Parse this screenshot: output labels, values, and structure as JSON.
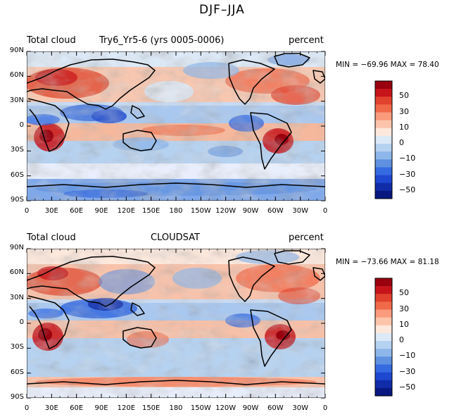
{
  "title": "DJF–JJA",
  "panels": [
    {
      "left_label": "Total cloud",
      "center_label": "Try6_Yr5-6 (yrs 0005-0006)",
      "right_label": "percent",
      "stats": "MIN = −69.96 MAX =  78.40"
    },
    {
      "left_label": "Total cloud",
      "center_label": "CLOUDSAT",
      "right_label": "percent",
      "stats": "MIN = −73.66 MAX =  81.18"
    }
  ],
  "lat_ticks": [
    "90N",
    "60N",
    "30N",
    "0",
    "30S",
    "60S",
    "90S"
  ],
  "lon_ticks": [
    "0",
    "30E",
    "60E",
    "90E",
    "120E",
    "150E",
    "180",
    "150W",
    "120W",
    "90W",
    "60W",
    "30W",
    "0"
  ],
  "colorbar": {
    "levels": [
      60,
      50,
      40,
      30,
      20,
      10,
      5,
      0,
      -5,
      -10,
      -20,
      -30,
      -40,
      -50,
      -60
    ],
    "labels": [
      "50",
      "30",
      "10",
      "0",
      "−10",
      "−30",
      "−50"
    ],
    "colors": [
      "#99000d",
      "#c6141a",
      "#e0422d",
      "#f06a4a",
      "#f99b7c",
      "#fcc4ab",
      "#fde8dc",
      "#dce9f7",
      "#b6d2f1",
      "#8db7ea",
      "#5f91e0",
      "#356ae0",
      "#1e48d0",
      "#102ca8",
      "#081880"
    ]
  }
}
